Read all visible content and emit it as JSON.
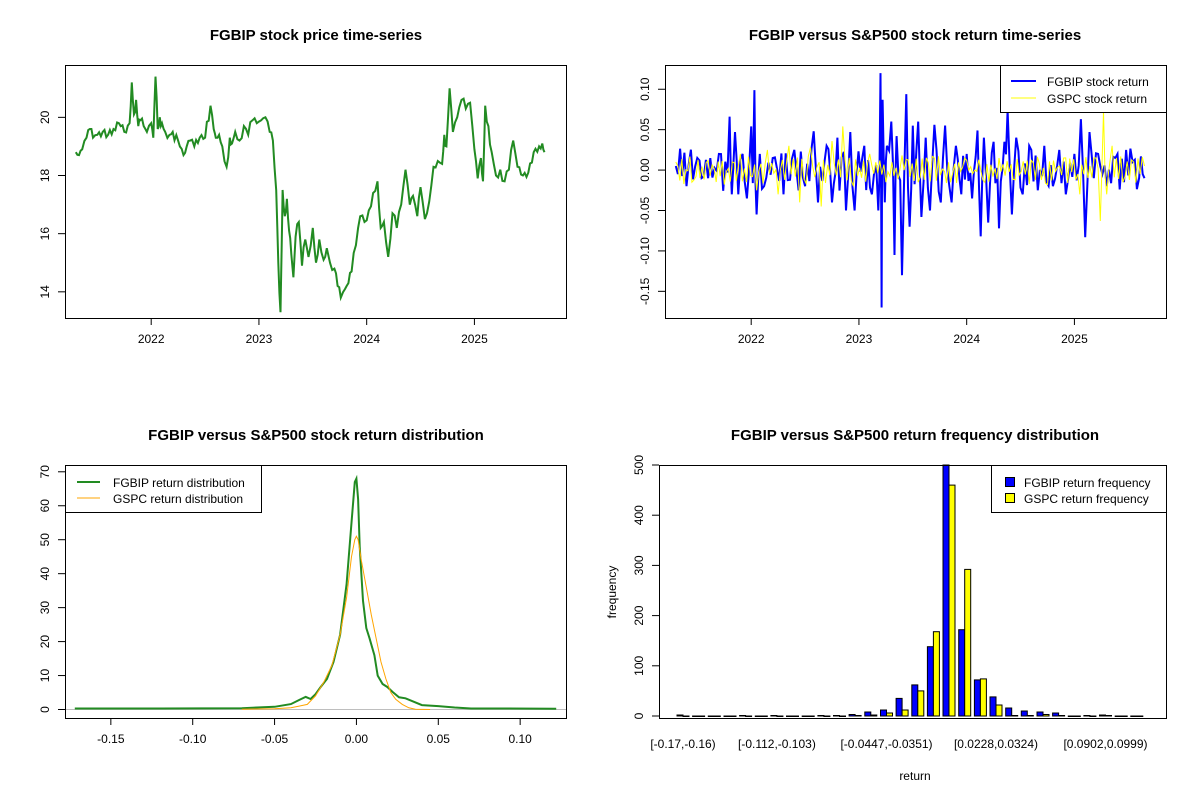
{
  "colors": {
    "price": "#228B22",
    "fgbip_return": "#0000FF",
    "gspc_return": "#FFFF00",
    "fgbip_density": "#228B22",
    "gspc_density": "#FFA500",
    "zero_line": "#BEBEBE"
  },
  "chart_data": [
    {
      "type": "line",
      "title": "FGBIP stock price time-series",
      "xlabel": "",
      "ylabel": "",
      "xlim": [
        2021.2,
        2025.85
      ],
      "ylim": [
        13.1,
        21.8
      ],
      "x_ticks": [
        2022,
        2023,
        2024,
        2025
      ],
      "x_tick_labels": [
        "2022",
        "2023",
        "2024",
        "2025"
      ],
      "y_ticks": [
        14,
        16,
        18,
        20
      ],
      "y_tick_labels": [
        "14",
        "16",
        "18",
        "20"
      ],
      "series": [
        {
          "name": "FGBIP price",
          "x": [
            2021.3,
            2021.33,
            2021.36,
            2021.4,
            2021.43,
            2021.46,
            2021.5,
            2021.55,
            2021.6,
            2021.65,
            2021.7,
            2021.75,
            2021.8,
            2021.82,
            2021.84,
            2021.86,
            2021.88,
            2021.9,
            2021.93,
            2021.96,
            2022.0,
            2022.02,
            2022.04,
            2022.06,
            2022.08,
            2022.1,
            2022.13,
            2022.17,
            2022.2,
            2022.25,
            2022.3,
            2022.33,
            2022.36,
            2022.4,
            2022.45,
            2022.5,
            2022.55,
            2022.58,
            2022.6,
            2022.63,
            2022.66,
            2022.7,
            2022.73,
            2022.75,
            2022.78,
            2022.82,
            2022.86,
            2022.9,
            2022.94,
            2022.98,
            2023.02,
            2023.06,
            2023.1,
            2023.13,
            2023.16,
            2023.18,
            2023.2,
            2023.21,
            2023.22,
            2023.24,
            2023.26,
            2023.28,
            2023.3,
            2023.32,
            2023.34,
            2023.37,
            2023.4,
            2023.43,
            2023.46,
            2023.5,
            2023.53,
            2023.56,
            2023.6,
            2023.63,
            2023.66,
            2023.7,
            2023.73,
            2023.76,
            2023.8,
            2023.83,
            2023.86,
            2023.9,
            2023.94,
            2023.98,
            2024.02,
            2024.06,
            2024.1,
            2024.13,
            2024.16,
            2024.2,
            2024.24,
            2024.28,
            2024.32,
            2024.36,
            2024.4,
            2024.43,
            2024.47,
            2024.5,
            2024.54,
            2024.58,
            2024.62,
            2024.66,
            2024.7,
            2024.72,
            2024.74,
            2024.77,
            2024.8,
            2024.84,
            2024.88,
            2024.92,
            2024.96,
            2025.0,
            2025.03,
            2025.06,
            2025.08,
            2025.1,
            2025.13,
            2025.16,
            2025.2,
            2025.24,
            2025.28,
            2025.32,
            2025.36,
            2025.4,
            2025.45,
            2025.5,
            2025.55,
            2025.6,
            2025.63,
            2025.65
          ],
          "y": [
            18.8,
            18.7,
            18.9,
            19.3,
            19.6,
            19.3,
            19.4,
            19.5,
            19.4,
            19.6,
            19.8,
            19.5,
            19.8,
            21.2,
            20.1,
            20.6,
            19.7,
            19.9,
            19.7,
            19.5,
            19.8,
            19.3,
            21.4,
            19.6,
            20.0,
            19.8,
            19.5,
            19.4,
            19.5,
            19.2,
            18.7,
            19.0,
            19.2,
            19.0,
            19.3,
            19.3,
            20.4,
            19.6,
            19.3,
            19.4,
            19.0,
            18.3,
            19.3,
            19.1,
            19.5,
            19.2,
            19.7,
            19.4,
            19.9,
            19.8,
            19.9,
            20.0,
            19.5,
            19.2,
            17.5,
            15.0,
            13.3,
            15.4,
            17.5,
            16.6,
            17.2,
            16.1,
            15.3,
            14.5,
            15.9,
            16.4,
            14.9,
            15.8,
            15.2,
            16.2,
            15.0,
            15.8,
            15.1,
            15.5,
            15.0,
            14.8,
            14.2,
            13.8,
            14.1,
            14.3,
            14.7,
            15.6,
            16.6,
            16.4,
            16.8,
            17.4,
            17.8,
            16.2,
            16.4,
            15.2,
            16.7,
            16.2,
            17.0,
            18.2,
            17.0,
            17.3,
            16.6,
            17.6,
            16.5,
            17.1,
            18.3,
            18.5,
            18.4,
            19.4,
            19.0,
            21.0,
            19.5,
            20.0,
            20.6,
            20.3,
            20.5,
            18.9,
            17.9,
            18.6,
            17.8,
            20.4,
            19.7,
            18.8,
            18.0,
            18.2,
            17.8,
            18.2,
            19.2,
            18.3,
            18.0,
            18.1,
            18.8,
            19.0,
            19.1,
            18.8
          ]
        }
      ]
    },
    {
      "type": "line",
      "title": "FGBIP versus S&P500 stock return time-series",
      "xlabel": "",
      "ylabel": "",
      "xlim": [
        2021.2,
        2025.85
      ],
      "ylim": [
        -0.183,
        0.13
      ],
      "x_ticks": [
        2022,
        2023,
        2024,
        2025
      ],
      "x_tick_labels": [
        "2022",
        "2023",
        "2024",
        "2025"
      ],
      "y_ticks": [
        -0.15,
        -0.1,
        -0.05,
        0.0,
        0.05,
        0.1
      ],
      "y_tick_labels": [
        "-0.15",
        "-0.10",
        "-0.05",
        "0.00",
        "0.05",
        "0.10"
      ],
      "legend": {
        "position": "top-right",
        "entries": [
          "FGBIP stock return",
          "GSPC stock return"
        ]
      },
      "series": [
        {
          "name": "FGBIP stock return",
          "x": [
            2021.3,
            2021.4,
            2021.5,
            2021.6,
            2021.7,
            2021.8,
            2021.82,
            2021.85,
            2021.88,
            2021.92,
            2021.96,
            2022.0,
            2022.03,
            2022.05,
            2022.08,
            2022.12,
            2022.2,
            2022.3,
            2022.4,
            2022.5,
            2022.58,
            2022.62,
            2022.7,
            2022.75,
            2022.8,
            2022.88,
            2022.92,
            2022.96,
            2023.05,
            2023.12,
            2023.18,
            2023.2,
            2023.21,
            2023.22,
            2023.24,
            2023.26,
            2023.3,
            2023.33,
            2023.35,
            2023.4,
            2023.44,
            2023.47,
            2023.5,
            2023.55,
            2023.58,
            2023.62,
            2023.66,
            2023.7,
            2023.76,
            2023.8,
            2023.86,
            2023.9,
            2023.95,
            2024.0,
            2024.05,
            2024.1,
            2024.13,
            2024.16,
            2024.2,
            2024.25,
            2024.3,
            2024.35,
            2024.38,
            2024.42,
            2024.46,
            2024.52,
            2024.58,
            2024.66,
            2024.72,
            2024.8,
            2024.86,
            2024.92,
            2025.0,
            2025.06,
            2025.1,
            2025.14,
            2025.18,
            2025.22,
            2025.3,
            2025.38,
            2025.46,
            2025.54,
            2025.6,
            2025.65
          ],
          "y": [
            0.005,
            -0.02,
            0.015,
            -0.01,
            0.02,
            0.066,
            -0.03,
            0.047,
            -0.03,
            0.02,
            -0.035,
            0.054,
            0.099,
            -0.055,
            0.02,
            -0.02,
            0.015,
            -0.03,
            0.025,
            -0.02,
            0.048,
            -0.04,
            0.03,
            -0.04,
            0.04,
            -0.05,
            0.047,
            -0.05,
            0.03,
            -0.03,
            -0.05,
            0.12,
            -0.17,
            0.087,
            -0.04,
            0.03,
            0.06,
            -0.105,
            0.042,
            -0.13,
            0.094,
            -0.07,
            0.055,
            0.06,
            -0.058,
            0.04,
            -0.05,
            0.056,
            -0.04,
            0.055,
            -0.04,
            0.03,
            -0.03,
            0.02,
            -0.035,
            0.049,
            -0.082,
            0.04,
            -0.065,
            0.035,
            -0.072,
            0.035,
            0.074,
            -0.055,
            0.04,
            -0.03,
            0.03,
            -0.025,
            0.03,
            -0.02,
            0.025,
            -0.03,
            0.02,
            0.063,
            -0.083,
            0.047,
            -0.01,
            0.02,
            -0.02,
            0.015,
            -0.015,
            0.01,
            -0.01,
            -0.01
          ]
        },
        {
          "name": "GSPC stock return",
          "x": [
            2021.3,
            2021.45,
            2021.6,
            2021.75,
            2021.9,
            2022.05,
            2022.15,
            2022.25,
            2022.35,
            2022.45,
            2022.55,
            2022.65,
            2022.75,
            2022.85,
            2022.95,
            2023.1,
            2023.25,
            2023.4,
            2023.55,
            2023.7,
            2023.85,
            2024.0,
            2024.15,
            2024.3,
            2024.45,
            2024.6,
            2024.75,
            2024.9,
            2025.05,
            2025.2,
            2025.24,
            2025.27,
            2025.3,
            2025.35,
            2025.45,
            2025.55,
            2025.65
          ],
          "y": [
            0.01,
            -0.015,
            0.012,
            -0.018,
            0.02,
            -0.025,
            0.025,
            -0.03,
            0.03,
            -0.04,
            0.028,
            -0.045,
            0.036,
            0.054,
            -0.02,
            0.02,
            -0.015,
            0.018,
            -0.015,
            0.015,
            -0.015,
            0.012,
            -0.012,
            0.015,
            -0.012,
            0.012,
            -0.018,
            0.015,
            -0.03,
            0.015,
            -0.063,
            0.073,
            -0.03,
            0.03,
            -0.015,
            0.01,
            0.005
          ]
        }
      ]
    },
    {
      "type": "line",
      "title": "FGBIP versus S&P500 stock return distribution",
      "xlabel": "",
      "ylabel": "",
      "xlim": [
        -0.178,
        0.128
      ],
      "ylim": [
        -2.5,
        72
      ],
      "x_ticks": [
        -0.15,
        -0.1,
        -0.05,
        0.0,
        0.05,
        0.1
      ],
      "x_tick_labels": [
        "-0.15",
        "-0.10",
        "-0.05",
        "0.00",
        "0.05",
        "0.10"
      ],
      "y_ticks": [
        0,
        10,
        20,
        30,
        40,
        50,
        60,
        70
      ],
      "y_tick_labels": [
        "0",
        "10",
        "20",
        "30",
        "40",
        "50",
        "60",
        "70"
      ],
      "legend": {
        "position": "top-left",
        "entries": [
          "FGBIP return distribution",
          "GSPC return distribution"
        ]
      },
      "series": [
        {
          "name": "FGBIP return distribution",
          "x": [
            -0.172,
            -0.12,
            -0.07,
            -0.05,
            -0.04,
            -0.035,
            -0.031,
            -0.028,
            -0.025,
            -0.022,
            -0.018,
            -0.014,
            -0.01,
            -0.006,
            -0.003,
            -0.001,
            0.0,
            0.001,
            0.002,
            0.004,
            0.006,
            0.008,
            0.011,
            0.013,
            0.016,
            0.019,
            0.022,
            0.026,
            0.03,
            0.04,
            0.05,
            0.06,
            0.07,
            0.09,
            0.122
          ],
          "y": [
            0.3,
            0.3,
            0.4,
            0.8,
            1.6,
            2.8,
            3.7,
            3.1,
            4.5,
            6.5,
            9.0,
            14,
            22,
            37,
            55,
            67,
            68,
            62,
            48,
            32,
            24,
            21,
            16,
            10,
            7.5,
            6.6,
            5.2,
            3.6,
            3.3,
            1.3,
            1.0,
            0.6,
            0.3,
            0.3,
            0.2
          ]
        },
        {
          "name": "GSPC return distribution",
          "x": [
            -0.07,
            -0.05,
            -0.04,
            -0.035,
            -0.03,
            -0.025,
            -0.02,
            -0.015,
            -0.01,
            -0.006,
            -0.003,
            -0.001,
            0.0,
            0.001,
            0.003,
            0.006,
            0.009,
            0.012,
            0.015,
            0.018,
            0.021,
            0.024,
            0.028,
            0.032,
            0.036,
            0.045
          ],
          "y": [
            0.1,
            0.2,
            0.5,
            1.0,
            1.5,
            4.0,
            8.0,
            13,
            22,
            33,
            45,
            50,
            51,
            50,
            44,
            36,
            28,
            21,
            14,
            9.0,
            5.0,
            3.0,
            1.5,
            0.5,
            0.1,
            0.0
          ]
        }
      ]
    },
    {
      "type": "bar",
      "title": "FGBIP versus S&P500 return frequency distribution",
      "xlabel": "return",
      "ylabel": "frequency",
      "ylim": [
        0,
        500
      ],
      "y_ticks": [
        0,
        100,
        200,
        300,
        400,
        500
      ],
      "y_tick_labels": [
        "0",
        "100",
        "200",
        "300",
        "400",
        "500"
      ],
      "category_labels_shown": {
        "0": "[-0.17,-0.16)",
        "6": "[-0.112,-0.103)",
        "13": "[-0.0447,-0.0351)",
        "20": "[0.0228,0.0324)",
        "27": "[0.0902,0.0999)"
      },
      "bin_count": 30,
      "legend": {
        "position": "top-right",
        "entries": [
          "FGBIP return frequency",
          "GSPC return frequency"
        ]
      },
      "series": [
        {
          "name": "FGBIP return frequency",
          "values": [
            2,
            0,
            0,
            0,
            1,
            0,
            1,
            0,
            0,
            1,
            1,
            3,
            8,
            12,
            35,
            62,
            138,
            500,
            172,
            72,
            38,
            16,
            10,
            8,
            6,
            0,
            1,
            2,
            0,
            0
          ]
        },
        {
          "name": "GSPC return frequency",
          "values": [
            0,
            0,
            0,
            0,
            0,
            0,
            0,
            0,
            0,
            0,
            0,
            1,
            2,
            6,
            12,
            50,
            168,
            460,
            292,
            74,
            22,
            1,
            1,
            3,
            1,
            0,
            0,
            1,
            0,
            0
          ]
        }
      ]
    }
  ]
}
